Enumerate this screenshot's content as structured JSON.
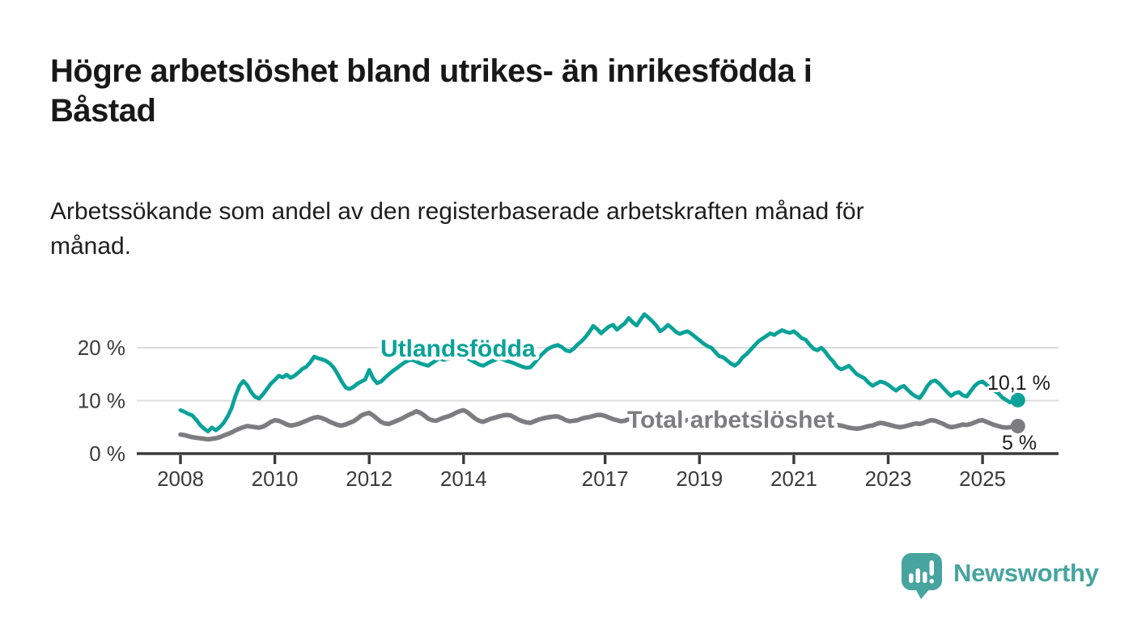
{
  "header": {
    "title": "Högre arbetslöshet bland utrikes- än inrikesfödda i\nBåstad",
    "subtitle": "Arbetssökande som andel av den registerbaserade arbetskraften månad för\nmånad."
  },
  "branding": {
    "name": "Newsworthy",
    "color": "#47a49f",
    "icon": "speech-bubble-bar-chart-icon"
  },
  "chart_data": {
    "type": "line",
    "title": "Högre arbetslöshet bland utrikes- än inrikesfödda i Båstad",
    "subtitle": "Arbetssökande som andel av den registerbaserade arbetskraften månad för månad.",
    "unit": "%",
    "x_start_year": 2008,
    "x_frequency": "monthly",
    "x_end_label_period": "2025-10",
    "xlim": [
      2007.1,
      2026.6
    ],
    "ylim": [
      0,
      30
    ],
    "grid": "horizontal",
    "legend_position": "inline-labels",
    "y_ticks": [
      {
        "pct": 0,
        "label": "0 %"
      },
      {
        "pct": 10,
        "label": "10 %"
      },
      {
        "pct": 20,
        "label": "20 %"
      }
    ],
    "y_gridlines_pct": [
      10,
      20
    ],
    "x_ticks": [
      {
        "year": 2008,
        "label": "2008"
      },
      {
        "year": 2010,
        "label": "2010"
      },
      {
        "year": 2012,
        "label": "2012"
      },
      {
        "year": 2014,
        "label": "2014"
      },
      {
        "year": 2017,
        "label": "2017"
      },
      {
        "year": 2019,
        "label": "2019"
      },
      {
        "year": 2021,
        "label": "2021"
      },
      {
        "year": 2023,
        "label": "2023"
      },
      {
        "year": 2025,
        "label": "2025"
      }
    ],
    "series": [
      {
        "name": "Utlandsfödda",
        "color": "#0aa298",
        "end_label": "10,1 %",
        "end_value": 10.1,
        "values": [
          8.2,
          7.9,
          7.5,
          7.2,
          6.4,
          5.4,
          4.7,
          4.2,
          4.9,
          4.4,
          5.0,
          5.8,
          7.0,
          8.6,
          10.9,
          12.8,
          13.7,
          12.9,
          11.6,
          10.7,
          10.4,
          11.2,
          12.2,
          13.2,
          13.9,
          14.7,
          14.4,
          14.9,
          14.3,
          14.7,
          15.3,
          16.0,
          16.4,
          17.2,
          18.3,
          18.0,
          17.8,
          17.5,
          17.0,
          16.2,
          15.0,
          13.6,
          12.5,
          12.2,
          12.6,
          13.2,
          13.6,
          14.0,
          15.8,
          14.2,
          13.3,
          13.6,
          14.3,
          15.0,
          15.6,
          16.1,
          16.7,
          17.2,
          17.6,
          17.7,
          17.4,
          17.0,
          16.8,
          16.6,
          17.1,
          17.6,
          18.0,
          17.7,
          17.9,
          18.2,
          18.4,
          18.1,
          18.3,
          18.0,
          17.6,
          17.2,
          16.8,
          16.6,
          17.0,
          17.4,
          17.7,
          18.0,
          17.8,
          17.5,
          17.3,
          17.0,
          16.7,
          16.4,
          16.2,
          16.3,
          17.1,
          18.0,
          18.8,
          19.5,
          20.0,
          20.3,
          20.5,
          20.1,
          19.5,
          19.3,
          19.8,
          20.6,
          21.2,
          22.0,
          23.0,
          24.1,
          23.5,
          22.7,
          23.4,
          24.0,
          24.3,
          23.4,
          24.0,
          24.6,
          25.6,
          24.8,
          24.2,
          25.3,
          26.3,
          25.7,
          25.0,
          24.2,
          23.1,
          23.6,
          24.3,
          23.7,
          23.0,
          22.6,
          22.9,
          23.1,
          22.6,
          22.0,
          21.4,
          20.8,
          20.3,
          20.0,
          19.2,
          18.4,
          18.2,
          17.6,
          17.0,
          16.6,
          17.2,
          18.2,
          18.8,
          19.6,
          20.4,
          21.2,
          21.7,
          22.2,
          22.7,
          22.4,
          22.9,
          23.3,
          23.0,
          22.8,
          23.1,
          22.5,
          21.8,
          21.5,
          20.6,
          19.8,
          19.5,
          20.0,
          19.2,
          18.2,
          17.4,
          16.4,
          15.9,
          16.2,
          16.6,
          15.8,
          15.0,
          14.6,
          14.2,
          13.4,
          12.8,
          13.2,
          13.6,
          13.4,
          13.0,
          12.4,
          11.9,
          12.5,
          12.8,
          12.0,
          11.3,
          10.8,
          10.5,
          11.5,
          12.8,
          13.6,
          13.8,
          13.2,
          12.4,
          11.6,
          10.9,
          11.4,
          11.6,
          11.0,
          10.8,
          11.8,
          12.8,
          13.4,
          13.6,
          13.0,
          12.4,
          11.9,
          11.4,
          10.6,
          10.1,
          9.7,
          9.8,
          10.1
        ]
      },
      {
        "name": "Total arbetslöshet",
        "color": "#7d7d80",
        "end_label": "5 %",
        "end_value": 5.2,
        "values": [
          3.6,
          3.5,
          3.3,
          3.1,
          3.0,
          2.9,
          2.8,
          2.7,
          2.8,
          2.9,
          3.1,
          3.4,
          3.7,
          4.0,
          4.4,
          4.7,
          5.0,
          5.2,
          5.1,
          5.0,
          4.9,
          5.1,
          5.5,
          6.0,
          6.3,
          6.2,
          5.9,
          5.5,
          5.3,
          5.4,
          5.6,
          5.9,
          6.2,
          6.5,
          6.8,
          6.9,
          6.7,
          6.4,
          6.0,
          5.7,
          5.4,
          5.3,
          5.5,
          5.8,
          6.1,
          6.6,
          7.2,
          7.5,
          7.7,
          7.2,
          6.6,
          6.0,
          5.7,
          5.6,
          5.9,
          6.2,
          6.5,
          6.9,
          7.3,
          7.6,
          8.0,
          7.7,
          7.2,
          6.6,
          6.3,
          6.2,
          6.5,
          6.8,
          7.0,
          7.3,
          7.7,
          8.0,
          8.2,
          7.8,
          7.2,
          6.6,
          6.2,
          6.0,
          6.3,
          6.6,
          6.8,
          7.0,
          7.2,
          7.3,
          7.2,
          6.8,
          6.4,
          6.1,
          5.9,
          5.8,
          6.1,
          6.4,
          6.6,
          6.8,
          6.9,
          7.0,
          7.0,
          6.7,
          6.3,
          6.1,
          6.2,
          6.3,
          6.6,
          6.8,
          6.9,
          7.1,
          7.3,
          7.3,
          7.1,
          6.8,
          6.5,
          6.3,
          6.1,
          6.2,
          6.5,
          6.7,
          6.6,
          6.7,
          6.9,
          7.0,
          6.9,
          6.6,
          6.3,
          6.0,
          5.8,
          5.9,
          6.1,
          6.3,
          6.2,
          6.3,
          6.4,
          6.5,
          6.4,
          6.2,
          5.9,
          5.7,
          5.6,
          5.7,
          5.9,
          6.0,
          5.9,
          6.0,
          6.2,
          6.5,
          6.7,
          6.9,
          7.2,
          7.6,
          7.8,
          7.9,
          8.0,
          7.8,
          7.6,
          7.4,
          7.2,
          7.1,
          7.2,
          7.0,
          6.7,
          6.4,
          6.1,
          5.9,
          6.0,
          6.1,
          5.9,
          5.7,
          5.5,
          5.4,
          5.3,
          5.1,
          4.9,
          4.8,
          4.7,
          4.8,
          5.0,
          5.2,
          5.3,
          5.6,
          5.8,
          5.7,
          5.5,
          5.3,
          5.1,
          5.0,
          5.1,
          5.3,
          5.5,
          5.7,
          5.6,
          5.8,
          6.1,
          6.3,
          6.2,
          5.9,
          5.6,
          5.2,
          5.0,
          5.1,
          5.3,
          5.5,
          5.4,
          5.6,
          5.9,
          6.2,
          6.3,
          6.0,
          5.7,
          5.4,
          5.2,
          5.0,
          4.9,
          5.0,
          5.1,
          5.2
        ]
      }
    ],
    "colors": {
      "axis": "#3b3b3b",
      "gridline": "#dcdcdc",
      "annotation_text": "#1a1a1a"
    }
  }
}
